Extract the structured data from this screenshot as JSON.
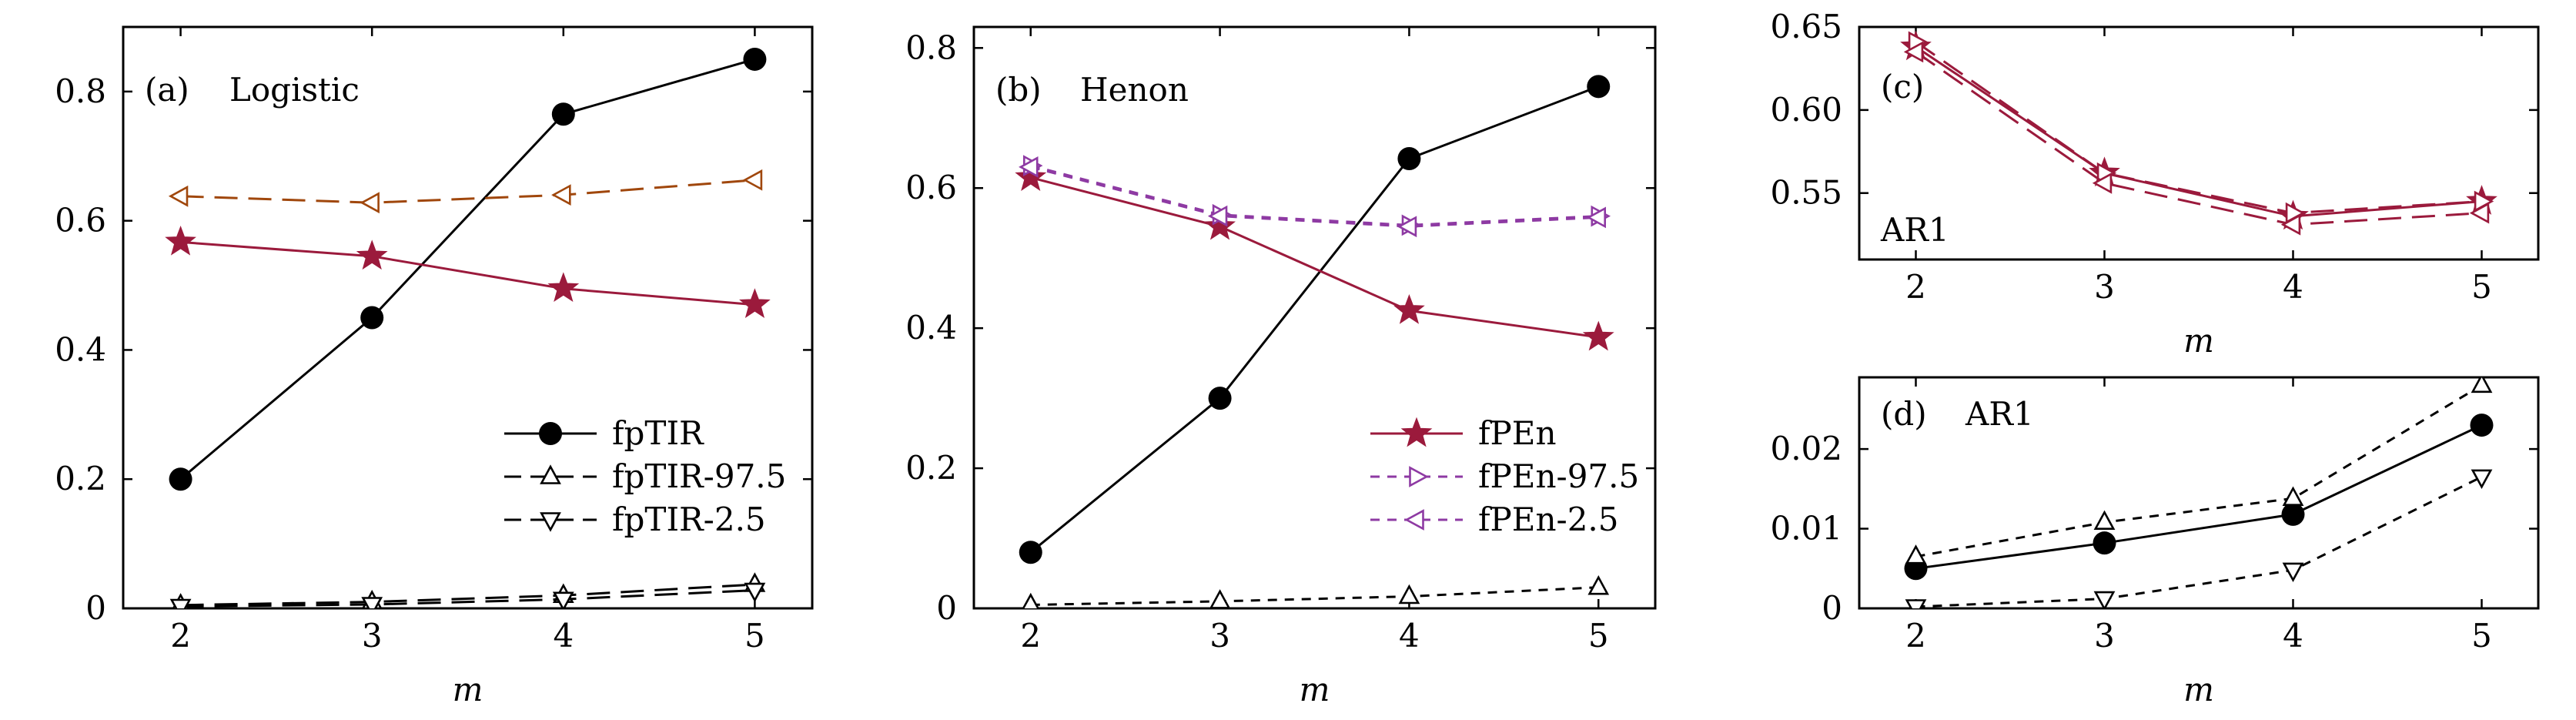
{
  "colors": {
    "black": "#000000",
    "crimson": "#9b1a3c",
    "brown": "#a0470c",
    "purple": "#8e3aa3"
  },
  "chart_data": [
    {
      "id": "a",
      "type": "line",
      "panel_label": "(a)",
      "title": "Logistic",
      "xlabel": "m",
      "x": [
        2,
        3,
        4,
        5
      ],
      "xlim": [
        1.7,
        5.3
      ],
      "ylim": [
        0,
        0.9
      ],
      "yticks": [
        0,
        0.2,
        0.4,
        0.6,
        0.8
      ],
      "ytick_labels": [
        "0",
        "0.2",
        "0.4",
        "0.6",
        "0.8"
      ],
      "legend_position": "lower-right",
      "series": [
        {
          "name": "fpTIR",
          "values": [
            0.2,
            0.45,
            0.765,
            0.85
          ],
          "color": "#000000",
          "marker": "circle-filled",
          "dash": "solid",
          "legend": true
        },
        {
          "name": "fpTIR-97.5",
          "values": [
            0.005,
            0.01,
            0.02,
            0.037
          ],
          "color": "#000000",
          "marker": "triangle-up-open",
          "dash": "long-dash",
          "legend": true
        },
        {
          "name": "fpTIR-2.5",
          "values": [
            0.003,
            0.006,
            0.014,
            0.028
          ],
          "color": "#000000",
          "marker": "triangle-down-open",
          "dash": "long-dash",
          "legend": true
        },
        {
          "name": "",
          "values": [
            0.567,
            0.545,
            0.495,
            0.47
          ],
          "color": "#9b1a3c",
          "marker": "star-filled",
          "dash": "solid",
          "legend": false
        },
        {
          "name": "",
          "values": [
            0.638,
            0.628,
            0.64,
            0.663
          ],
          "color": "#a0470c",
          "marker": "triangle-left-open",
          "dash": "long-dash",
          "legend": false
        }
      ]
    },
    {
      "id": "b",
      "type": "line",
      "panel_label": "(b)",
      "title": "Henon",
      "xlabel": "m",
      "x": [
        2,
        3,
        4,
        5
      ],
      "xlim": [
        1.7,
        5.3
      ],
      "ylim": [
        0,
        0.83
      ],
      "yticks": [
        0,
        0.2,
        0.4,
        0.6,
        0.8
      ],
      "ytick_labels": [
        "0",
        "0.2",
        "0.4",
        "0.6",
        "0.8"
      ],
      "legend_position": "lower-right",
      "series": [
        {
          "name": "",
          "values": [
            0.08,
            0.3,
            0.642,
            0.745
          ],
          "color": "#000000",
          "marker": "circle-filled",
          "dash": "solid",
          "legend": false
        },
        {
          "name": "",
          "values": [
            0.005,
            0.01,
            0.017,
            0.03
          ],
          "color": "#000000",
          "marker": "triangle-up-open",
          "dash": "short-dash",
          "legend": false
        },
        {
          "name": "fPEn",
          "values": [
            0.615,
            0.545,
            0.425,
            0.387
          ],
          "color": "#9b1a3c",
          "marker": "star-filled",
          "dash": "solid",
          "legend": true
        },
        {
          "name": "fPEn-97.5",
          "values": [
            0.632,
            0.562,
            0.547,
            0.56
          ],
          "color": "#8e3aa3",
          "marker": "triangle-right-open",
          "dash": "short-dash",
          "legend": true
        },
        {
          "name": "fPEn-2.5",
          "values": [
            0.63,
            0.56,
            0.545,
            0.558
          ],
          "color": "#8e3aa3",
          "marker": "triangle-left-open",
          "dash": "short-dash",
          "legend": true
        }
      ]
    },
    {
      "id": "c",
      "type": "line",
      "panel_label": "(c)",
      "title": "AR1",
      "xlabel": "m",
      "x": [
        2,
        3,
        4,
        5
      ],
      "xlim": [
        1.7,
        5.3
      ],
      "ylim": [
        0.51,
        0.65
      ],
      "yticks": [
        0.55,
        0.6,
        0.65
      ],
      "ytick_labels": [
        "0.55",
        "0.60",
        "0.65"
      ],
      "series": [
        {
          "name": "",
          "values": [
            0.638,
            0.562,
            0.536,
            0.545
          ],
          "color": "#9b1a3c",
          "marker": "star-filled",
          "dash": "solid",
          "legend": false
        },
        {
          "name": "",
          "values": [
            0.641,
            0.562,
            0.538,
            0.545
          ],
          "color": "#9b1a3c",
          "marker": "triangle-right-open",
          "dash": "long-dash",
          "legend": false
        },
        {
          "name": "",
          "values": [
            0.635,
            0.556,
            0.531,
            0.538
          ],
          "color": "#9b1a3c",
          "marker": "triangle-left-open",
          "dash": "long-dash",
          "legend": false
        }
      ]
    },
    {
      "id": "d",
      "type": "line",
      "panel_label": "(d)",
      "title": "AR1",
      "xlabel": "m",
      "x": [
        2,
        3,
        4,
        5
      ],
      "xlim": [
        1.7,
        5.3
      ],
      "ylim": [
        0,
        0.029
      ],
      "yticks": [
        0,
        0.01,
        0.02
      ],
      "ytick_labels": [
        "0",
        "0.01",
        "0.02"
      ],
      "series": [
        {
          "name": "",
          "values": [
            0.005,
            0.0082,
            0.0118,
            0.023
          ],
          "color": "#000000",
          "marker": "circle-filled",
          "dash": "solid",
          "legend": false
        },
        {
          "name": "",
          "values": [
            0.0065,
            0.0108,
            0.0138,
            0.028
          ],
          "color": "#000000",
          "marker": "triangle-up-open",
          "dash": "short-dash",
          "legend": false
        },
        {
          "name": "",
          "values": [
            0.0002,
            0.0012,
            0.0048,
            0.0165
          ],
          "color": "#000000",
          "marker": "triangle-down-open",
          "dash": "short-dash",
          "legend": false
        }
      ]
    }
  ]
}
